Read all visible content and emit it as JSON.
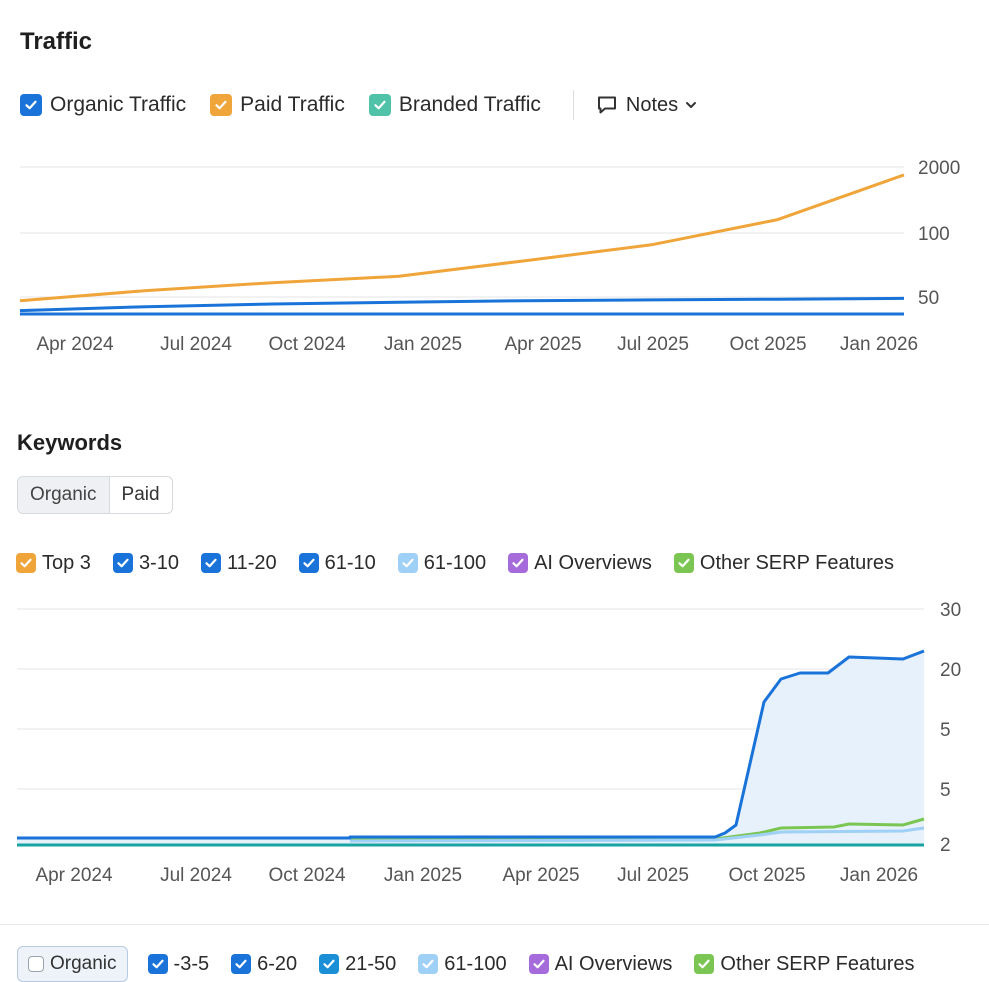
{
  "traffic": {
    "title": "Traffic",
    "legend": [
      {
        "label": "Organic Traffic",
        "color": "#1a73d9",
        "checked": true
      },
      {
        "label": "Paid Traffic",
        "color": "#f0a53a",
        "checked": true
      },
      {
        "label": "Branded Traffic",
        "color": "#4fc2a8",
        "checked": true
      }
    ],
    "notes_label": "Notes"
  },
  "keywords": {
    "title": "Keywords",
    "tabs": [
      {
        "label": "Organic",
        "active": true
      },
      {
        "label": "Paid",
        "active": false
      }
    ],
    "legend": [
      {
        "label": "Top 3",
        "color": "#f0a53a",
        "checked": true
      },
      {
        "label": "3-10",
        "color": "#1a73d9",
        "checked": true
      },
      {
        "label": "11-20",
        "color": "#1a73d9",
        "checked": true
      },
      {
        "label": "61-10",
        "color": "#1a73d9",
        "checked": true
      },
      {
        "label": "61-100",
        "color": "#9fd0f5",
        "checked": true
      },
      {
        "label": "AI Overviews",
        "color": "#a66bdb",
        "checked": true
      },
      {
        "label": "Other SERP Features",
        "color": "#7bc653",
        "checked": true
      }
    ]
  },
  "bottom_bar": {
    "organic_label": "Organic",
    "legend": [
      {
        "label": "-3-5",
        "color": "#1a73d9",
        "checked": true
      },
      {
        "label": "6-20",
        "color": "#1a73d9",
        "checked": true
      },
      {
        "label": "21-50",
        "color": "#1a8fd6",
        "checked": true
      },
      {
        "label": "61-100",
        "color": "#9fd0f5",
        "checked": true
      },
      {
        "label": "AI Overviews",
        "color": "#a66bdb",
        "checked": true
      },
      {
        "label": "Other SERP Features",
        "color": "#7bc653",
        "checked": true
      }
    ]
  },
  "chart_data": [
    {
      "type": "line",
      "title": "Traffic",
      "x": [
        "Apr 2024",
        "Jul 2024",
        "Oct 2024",
        "Jan 2025",
        "Apr 2025",
        "Jul 2025",
        "Oct 2025",
        "Jan 2026"
      ],
      "y_ticks": [
        "2000",
        "100",
        "50"
      ],
      "series": [
        {
          "name": "Paid Traffic",
          "color": "#f0a53a",
          "values": [
            45,
            60,
            75,
            90,
            140,
            220,
            450,
            1600
          ]
        },
        {
          "name": "Organic Traffic",
          "color": "#1a73d9",
          "values": [
            34,
            38,
            41,
            43,
            45,
            46,
            47,
            48
          ]
        },
        {
          "name": "Branded Traffic",
          "color": "#1a73d9",
          "values": [
            30,
            30,
            30,
            30,
            30,
            30,
            30,
            30
          ]
        }
      ],
      "grid": true
    },
    {
      "type": "area",
      "title": "Keywords",
      "x": [
        "Apr 2024",
        "Jul 2024",
        "Oct 2024",
        "Jan 2025",
        "Apr 2025",
        "Jul 2025",
        "Oct 2025",
        "Jan 2026"
      ],
      "y_ticks": [
        "30",
        "20",
        "5",
        "5",
        "2"
      ],
      "series": [
        {
          "name": "3-10",
          "color": "#1a73d9",
          "values": [
            2,
            2,
            2,
            2,
            2,
            2,
            17,
            22
          ]
        },
        {
          "name": "Other SERP Features",
          "color": "#7bc653",
          "values": [
            1.8,
            1.8,
            1.8,
            1.9,
            1.9,
            2,
            2.5,
            3
          ]
        },
        {
          "name": "61-100",
          "color": "#9fd0f5",
          "values": [
            1.8,
            1.8,
            1.8,
            1.9,
            1.9,
            2,
            2.3,
            2.6
          ]
        },
        {
          "name": "Top 3",
          "color": "#1aa3a3",
          "values": [
            1.6,
            1.6,
            1.6,
            1.6,
            1.6,
            1.6,
            1.6,
            1.6
          ]
        }
      ],
      "grid": true
    }
  ]
}
